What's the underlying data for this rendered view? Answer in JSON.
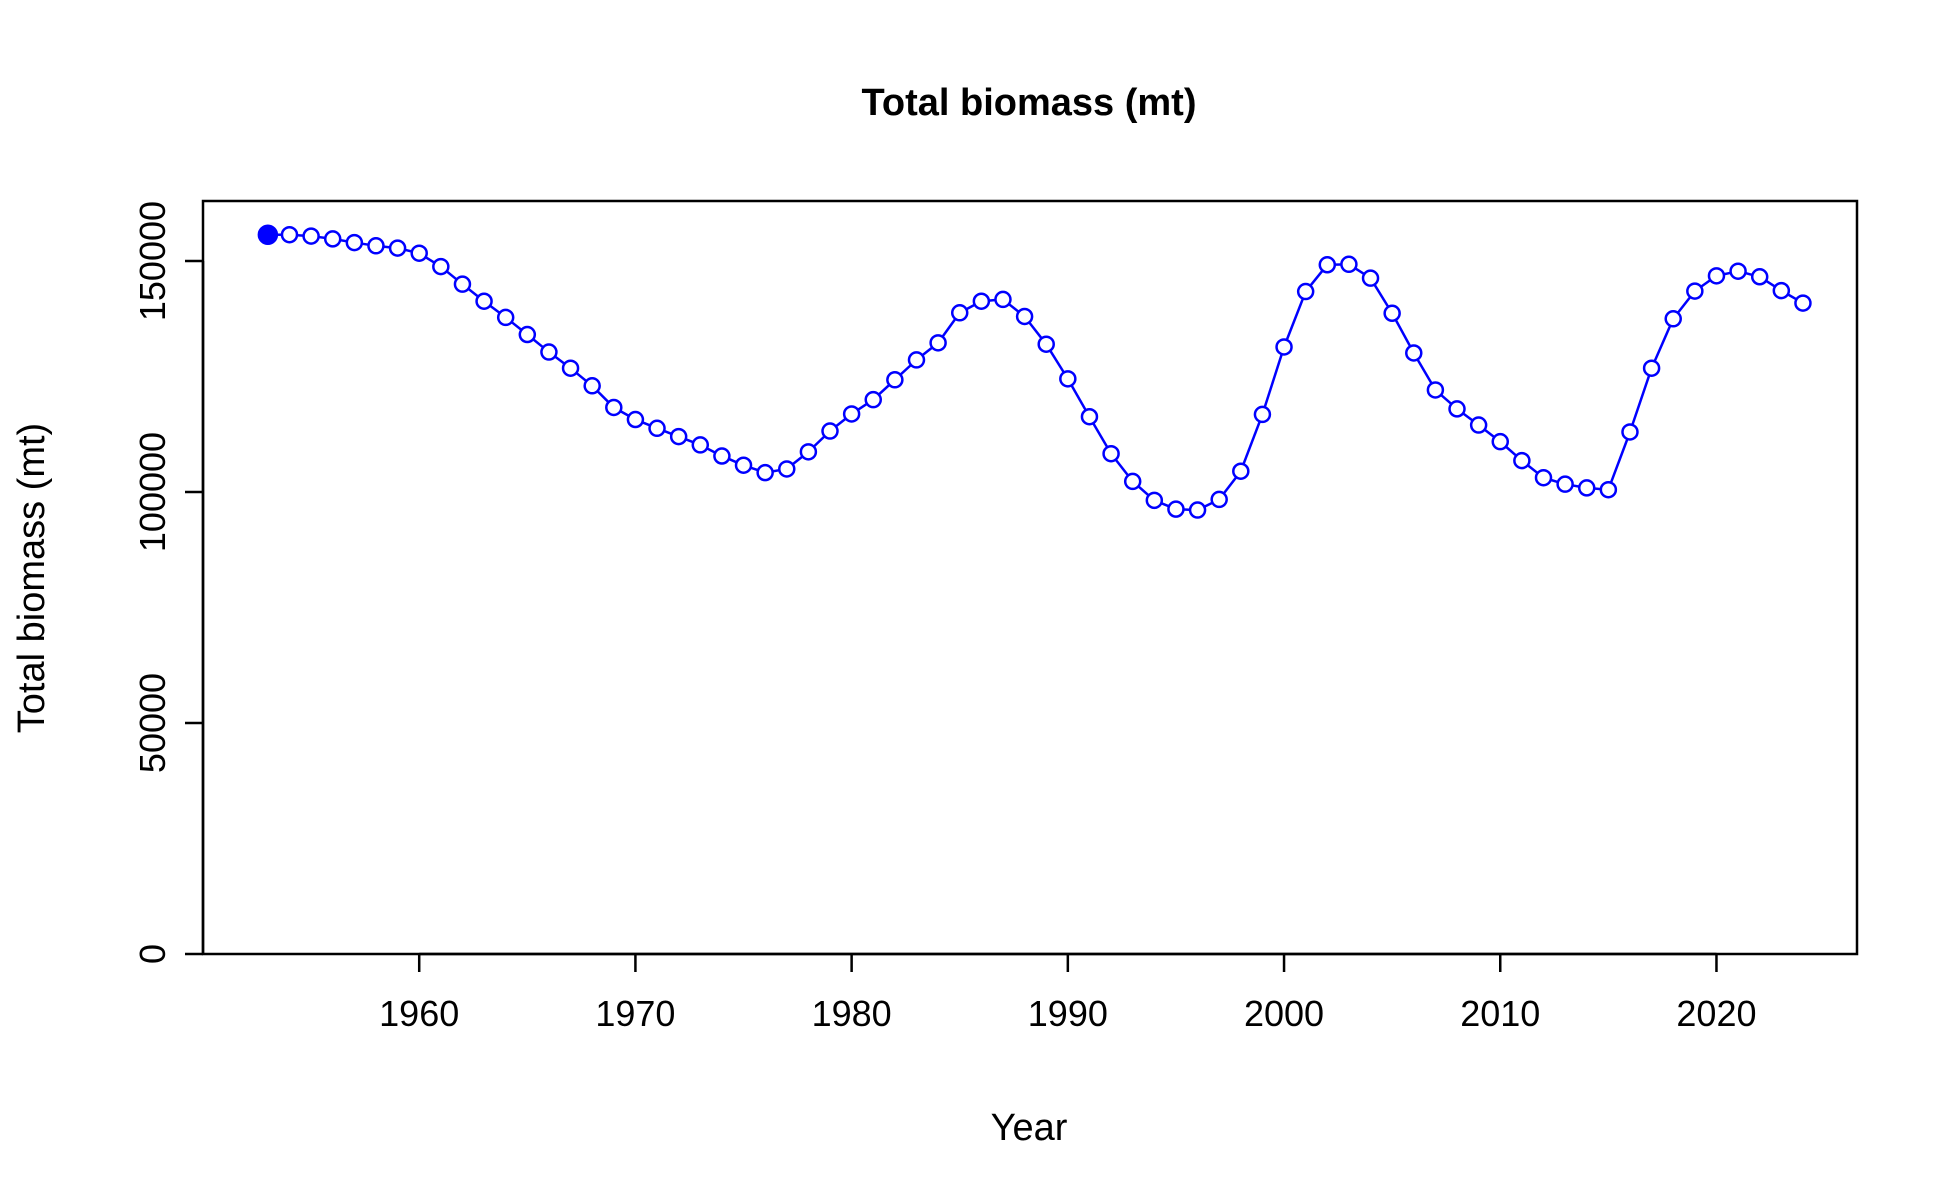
{
  "chart_data": {
    "type": "line",
    "title": "Total biomass (mt)",
    "xlabel": "Year",
    "ylabel": "Total biomass (mt)",
    "xlim": [
      1950,
      2026.5
    ],
    "ylim": [
      0,
      163000
    ],
    "x_ticks": [
      1960,
      1970,
      1980,
      1990,
      2000,
      2010,
      2020
    ],
    "y_ticks": [
      0,
      50000,
      100000,
      150000
    ],
    "x_tick_labels": [
      "1960",
      "1970",
      "1980",
      "1990",
      "2000",
      "2010",
      "2020"
    ],
    "y_tick_labels": [
      "0",
      "50000",
      "100000",
      "150000"
    ],
    "grid": false,
    "legend": "none",
    "series_color": "#0000FF",
    "first_point_filled": true,
    "x": [
      1953,
      1954,
      1955,
      1956,
      1957,
      1958,
      1959,
      1960,
      1961,
      1962,
      1963,
      1964,
      1965,
      1966,
      1967,
      1968,
      1969,
      1970,
      1971,
      1972,
      1973,
      1974,
      1975,
      1976,
      1977,
      1978,
      1979,
      1980,
      1981,
      1982,
      1983,
      1984,
      1985,
      1986,
      1987,
      1988,
      1989,
      1990,
      1991,
      1992,
      1993,
      1994,
      1995,
      1996,
      1997,
      1998,
      1999,
      2000,
      2001,
      2002,
      2003,
      2004,
      2005,
      2006,
      2007,
      2008,
      2009,
      2010,
      2011,
      2012,
      2013,
      2014,
      2015,
      2016,
      2017,
      2018,
      2019,
      2020,
      2021,
      2022,
      2023,
      2024
    ],
    "series": [
      {
        "values": [
          155700,
          155700,
          155400,
          154800,
          154000,
          153300,
          152800,
          151700,
          148800,
          145000,
          141300,
          137800,
          134100,
          130300,
          126800,
          123000,
          118300,
          115700,
          113800,
          112000,
          110200,
          107800,
          105800,
          104200,
          105000,
          108700,
          113200,
          116900,
          120000,
          124300,
          128600,
          132300,
          138800,
          141300,
          141700,
          138000,
          132000,
          124500,
          116300,
          108300,
          102300,
          98200,
          96300,
          96100,
          98400,
          104500,
          116800,
          131400,
          143400,
          149200,
          149300,
          146300,
          138700,
          130100,
          122100,
          118000,
          114500,
          110900,
          106800,
          103100,
          101700,
          100900,
          100500,
          113000,
          126800,
          137500,
          143500,
          146800,
          147800,
          146600,
          143600,
          140900
        ]
      }
    ]
  }
}
